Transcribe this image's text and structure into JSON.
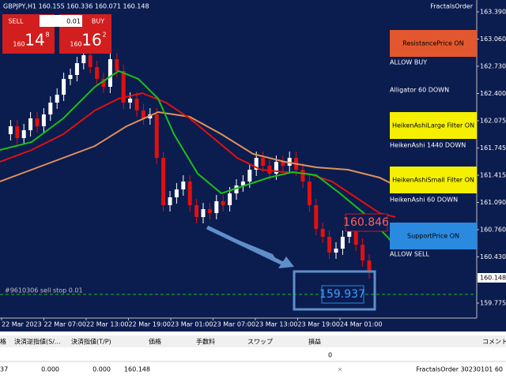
{
  "header": {
    "symbol_info": "GBPJPY,H1 160.155 160.336 160.071 160.148",
    "ea_name": "FractalsOrder"
  },
  "trade_panel": {
    "sell": "SELL",
    "lot": "0.01",
    "buy": "BUY",
    "sell_price": {
      "big": "160",
      "main": "14",
      "sup": "8"
    },
    "buy_price": {
      "big": "160",
      "main": "16",
      "sup": "2"
    }
  },
  "price_axis": [
    "163.390",
    "163.060",
    "162.730",
    "162.400",
    "162.075",
    "161.745",
    "161.415",
    "161.090",
    "160.760",
    "160.430",
    "159.775"
  ],
  "current_price": "160.148",
  "time_axis": [
    "22 Mar 2023",
    "22 Mar 07:00",
    "22 Mar 13:00",
    "22 Mar 19:00",
    "23 Mar 01:00",
    "23 Mar 07:00",
    "23 Mar 13:00",
    "23 Mar 19:00",
    "24 Mar 01:00"
  ],
  "status_panel": {
    "resistance": "ResistancePrice ON",
    "allow_buy": "ALLOW BUY",
    "alligator": "Alligator 60 DOWN",
    "ha_large": "HeikenAshiLarge Filter ON",
    "ha_1440": "HeikenAshi 1440 DOWN",
    "ha_small": "HeikenAshiSmall Filter ON",
    "ha_60": "HeikenAshi 60 DOWN",
    "support": "SupportPrice ON",
    "allow_sell": "ALLOW SELL"
  },
  "price_labels": {
    "resistance": "160.846",
    "support": "159.937"
  },
  "order_line": "#9610306 sell stop 0.01",
  "terminal": {
    "headers": [
      "格",
      "決済逆指値(S/...",
      "決済指値(T/P)",
      "価格",
      "手数料",
      "スワップ",
      "損益",
      "コメント"
    ],
    "total": "0",
    "row": [
      "37",
      "0.000",
      "0.000",
      "160.148",
      "×",
      "FractalsOrder 30230101 60"
    ]
  }
}
